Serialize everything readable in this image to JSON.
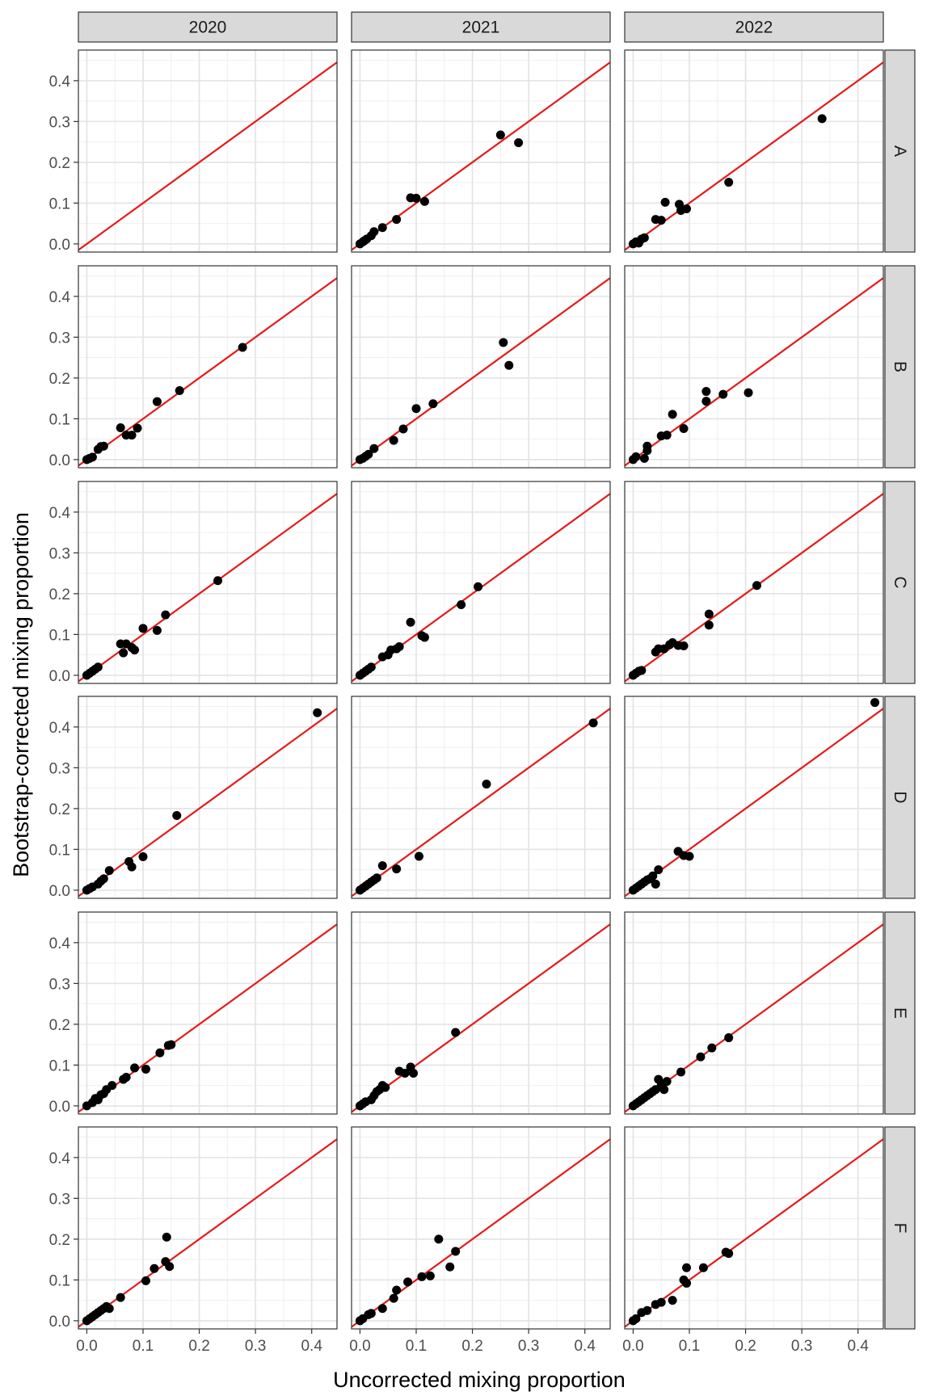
{
  "chart_data": {
    "type": "scatter",
    "layout": "facet_grid",
    "xlabel": "Uncorrected mixing proportion",
    "ylabel": "Bootstrap-corrected mixing proportion",
    "col_facets": [
      "2020",
      "2021",
      "2022"
    ],
    "row_facets": [
      "A",
      "B",
      "C",
      "D",
      "E",
      "F"
    ],
    "xlim": [
      -0.015,
      0.445
    ],
    "ylim": [
      -0.02,
      0.475
    ],
    "x_ticks": [
      0.0,
      0.1,
      0.2,
      0.3,
      0.4
    ],
    "y_ticks": [
      0.0,
      0.1,
      0.2,
      0.3,
      0.4
    ],
    "x_tick_labels": [
      "0.0",
      "0.1",
      "0.2",
      "0.3",
      "0.4"
    ],
    "y_tick_labels": [
      "0.0",
      "0.1",
      "0.2",
      "0.3",
      "0.4"
    ],
    "reference_line": {
      "slope": 1,
      "intercept": 0,
      "color": "#e41a1c"
    },
    "grid": true,
    "point_color": "#000000",
    "panels": [
      {
        "row": "A",
        "col": "2020",
        "points": []
      },
      {
        "row": "A",
        "col": "2021",
        "points": [
          [
            0.0,
            0.0
          ],
          [
            0.005,
            0.005
          ],
          [
            0.008,
            0.008
          ],
          [
            0.012,
            0.012
          ],
          [
            0.02,
            0.02
          ],
          [
            0.025,
            0.03
          ],
          [
            0.04,
            0.04
          ],
          [
            0.065,
            0.06
          ],
          [
            0.09,
            0.113
          ],
          [
            0.1,
            0.112
          ],
          [
            0.115,
            0.104
          ],
          [
            0.25,
            0.267
          ],
          [
            0.282,
            0.248
          ]
        ]
      },
      {
        "row": "A",
        "col": "2022",
        "points": [
          [
            0.0,
            0.0
          ],
          [
            0.005,
            0.005
          ],
          [
            0.01,
            0.002
          ],
          [
            0.015,
            0.012
          ],
          [
            0.02,
            0.015
          ],
          [
            0.04,
            0.06
          ],
          [
            0.05,
            0.058
          ],
          [
            0.057,
            0.102
          ],
          [
            0.082,
            0.097
          ],
          [
            0.085,
            0.082
          ],
          [
            0.095,
            0.086
          ],
          [
            0.17,
            0.151
          ],
          [
            0.336,
            0.307
          ]
        ]
      },
      {
        "row": "B",
        "col": "2020",
        "points": [
          [
            0.0,
            0.0
          ],
          [
            0.005,
            0.003
          ],
          [
            0.01,
            0.006
          ],
          [
            0.02,
            0.025
          ],
          [
            0.025,
            0.032
          ],
          [
            0.03,
            0.033
          ],
          [
            0.06,
            0.078
          ],
          [
            0.07,
            0.06
          ],
          [
            0.08,
            0.06
          ],
          [
            0.09,
            0.077
          ],
          [
            0.125,
            0.142
          ],
          [
            0.165,
            0.169
          ],
          [
            0.277,
            0.275
          ]
        ]
      },
      {
        "row": "B",
        "col": "2021",
        "points": [
          [
            0.0,
            0.0
          ],
          [
            0.005,
            0.003
          ],
          [
            0.01,
            0.008
          ],
          [
            0.015,
            0.013
          ],
          [
            0.025,
            0.027
          ],
          [
            0.06,
            0.047
          ],
          [
            0.077,
            0.075
          ],
          [
            0.1,
            0.125
          ],
          [
            0.13,
            0.137
          ],
          [
            0.255,
            0.287
          ],
          [
            0.265,
            0.231
          ]
        ]
      },
      {
        "row": "B",
        "col": "2022",
        "points": [
          [
            0.0,
            0.0
          ],
          [
            0.005,
            0.007
          ],
          [
            0.02,
            0.003
          ],
          [
            0.025,
            0.022
          ],
          [
            0.025,
            0.033
          ],
          [
            0.05,
            0.058
          ],
          [
            0.06,
            0.06
          ],
          [
            0.07,
            0.111
          ],
          [
            0.09,
            0.076
          ],
          [
            0.13,
            0.143
          ],
          [
            0.13,
            0.167
          ],
          [
            0.16,
            0.16
          ],
          [
            0.205,
            0.164
          ]
        ]
      },
      {
        "row": "C",
        "col": "2020",
        "points": [
          [
            0.0,
            0.0
          ],
          [
            0.005,
            0.005
          ],
          [
            0.01,
            0.01
          ],
          [
            0.015,
            0.015
          ],
          [
            0.02,
            0.02
          ],
          [
            0.06,
            0.077
          ],
          [
            0.065,
            0.055
          ],
          [
            0.07,
            0.077
          ],
          [
            0.08,
            0.068
          ],
          [
            0.085,
            0.062
          ],
          [
            0.1,
            0.115
          ],
          [
            0.125,
            0.11
          ],
          [
            0.14,
            0.148
          ],
          [
            0.233,
            0.232
          ]
        ]
      },
      {
        "row": "C",
        "col": "2021",
        "points": [
          [
            0.0,
            0.0
          ],
          [
            0.005,
            0.005
          ],
          [
            0.01,
            0.01
          ],
          [
            0.015,
            0.015
          ],
          [
            0.02,
            0.02
          ],
          [
            0.04,
            0.045
          ],
          [
            0.05,
            0.05
          ],
          [
            0.055,
            0.062
          ],
          [
            0.065,
            0.065
          ],
          [
            0.07,
            0.07
          ],
          [
            0.09,
            0.13
          ],
          [
            0.11,
            0.097
          ],
          [
            0.115,
            0.093
          ],
          [
            0.18,
            0.173
          ],
          [
            0.21,
            0.217
          ]
        ]
      },
      {
        "row": "C",
        "col": "2022",
        "points": [
          [
            0.0,
            0.0
          ],
          [
            0.005,
            0.005
          ],
          [
            0.01,
            0.01
          ],
          [
            0.015,
            0.012
          ],
          [
            0.04,
            0.057
          ],
          [
            0.045,
            0.065
          ],
          [
            0.055,
            0.065
          ],
          [
            0.065,
            0.075
          ],
          [
            0.07,
            0.08
          ],
          [
            0.08,
            0.073
          ],
          [
            0.09,
            0.072
          ],
          [
            0.135,
            0.15
          ],
          [
            0.135,
            0.123
          ],
          [
            0.22,
            0.22
          ]
        ]
      },
      {
        "row": "D",
        "col": "2020",
        "points": [
          [
            0.0,
            0.0
          ],
          [
            0.005,
            0.004
          ],
          [
            0.01,
            0.008
          ],
          [
            0.02,
            0.015
          ],
          [
            0.025,
            0.022
          ],
          [
            0.03,
            0.028
          ],
          [
            0.04,
            0.048
          ],
          [
            0.075,
            0.07
          ],
          [
            0.08,
            0.057
          ],
          [
            0.1,
            0.082
          ],
          [
            0.16,
            0.183
          ],
          [
            0.41,
            0.435
          ]
        ]
      },
      {
        "row": "D",
        "col": "2021",
        "points": [
          [
            0.0,
            0.0
          ],
          [
            0.005,
            0.005
          ],
          [
            0.01,
            0.01
          ],
          [
            0.015,
            0.015
          ],
          [
            0.02,
            0.02
          ],
          [
            0.025,
            0.025
          ],
          [
            0.03,
            0.03
          ],
          [
            0.04,
            0.06
          ],
          [
            0.065,
            0.052
          ],
          [
            0.105,
            0.083
          ],
          [
            0.225,
            0.26
          ],
          [
            0.415,
            0.41
          ]
        ]
      },
      {
        "row": "D",
        "col": "2022",
        "points": [
          [
            0.0,
            0.0
          ],
          [
            0.005,
            0.005
          ],
          [
            0.01,
            0.01
          ],
          [
            0.015,
            0.015
          ],
          [
            0.02,
            0.02
          ],
          [
            0.025,
            0.025
          ],
          [
            0.03,
            0.028
          ],
          [
            0.035,
            0.035
          ],
          [
            0.04,
            0.015
          ],
          [
            0.045,
            0.05
          ],
          [
            0.08,
            0.095
          ],
          [
            0.09,
            0.085
          ],
          [
            0.1,
            0.083
          ],
          [
            0.43,
            0.46
          ]
        ]
      },
      {
        "row": "E",
        "col": "2020",
        "points": [
          [
            0.0,
            0.0
          ],
          [
            0.01,
            0.008
          ],
          [
            0.015,
            0.018
          ],
          [
            0.02,
            0.015
          ],
          [
            0.025,
            0.027
          ],
          [
            0.03,
            0.03
          ],
          [
            0.035,
            0.04
          ],
          [
            0.045,
            0.05
          ],
          [
            0.065,
            0.065
          ],
          [
            0.07,
            0.07
          ],
          [
            0.085,
            0.093
          ],
          [
            0.105,
            0.09
          ],
          [
            0.13,
            0.13
          ],
          [
            0.145,
            0.148
          ],
          [
            0.15,
            0.15
          ]
        ]
      },
      {
        "row": "E",
        "col": "2021",
        "points": [
          [
            0.0,
            0.0
          ],
          [
            0.005,
            0.005
          ],
          [
            0.01,
            0.01
          ],
          [
            0.02,
            0.015
          ],
          [
            0.025,
            0.025
          ],
          [
            0.03,
            0.035
          ],
          [
            0.035,
            0.04
          ],
          [
            0.04,
            0.05
          ],
          [
            0.045,
            0.045
          ],
          [
            0.07,
            0.085
          ],
          [
            0.08,
            0.08
          ],
          [
            0.09,
            0.095
          ],
          [
            0.095,
            0.08
          ],
          [
            0.17,
            0.18
          ]
        ]
      },
      {
        "row": "E",
        "col": "2022",
        "points": [
          [
            0.0,
            0.0
          ],
          [
            0.005,
            0.005
          ],
          [
            0.01,
            0.01
          ],
          [
            0.015,
            0.015
          ],
          [
            0.02,
            0.02
          ],
          [
            0.025,
            0.025
          ],
          [
            0.03,
            0.03
          ],
          [
            0.035,
            0.035
          ],
          [
            0.04,
            0.04
          ],
          [
            0.045,
            0.065
          ],
          [
            0.05,
            0.05
          ],
          [
            0.055,
            0.04
          ],
          [
            0.06,
            0.06
          ],
          [
            0.085,
            0.083
          ],
          [
            0.12,
            0.12
          ],
          [
            0.14,
            0.142
          ],
          [
            0.17,
            0.167
          ]
        ]
      },
      {
        "row": "F",
        "col": "2020",
        "points": [
          [
            0.0,
            0.0
          ],
          [
            0.005,
            0.005
          ],
          [
            0.01,
            0.01
          ],
          [
            0.015,
            0.015
          ],
          [
            0.02,
            0.02
          ],
          [
            0.025,
            0.025
          ],
          [
            0.03,
            0.03
          ],
          [
            0.035,
            0.035
          ],
          [
            0.04,
            0.03
          ],
          [
            0.06,
            0.057
          ],
          [
            0.105,
            0.098
          ],
          [
            0.12,
            0.128
          ],
          [
            0.14,
            0.145
          ],
          [
            0.142,
            0.205
          ],
          [
            0.147,
            0.133
          ]
        ]
      },
      {
        "row": "F",
        "col": "2021",
        "points": [
          [
            0.0,
            0.0
          ],
          [
            0.005,
            0.005
          ],
          [
            0.015,
            0.015
          ],
          [
            0.02,
            0.018
          ],
          [
            0.04,
            0.03
          ],
          [
            0.06,
            0.055
          ],
          [
            0.065,
            0.075
          ],
          [
            0.085,
            0.095
          ],
          [
            0.11,
            0.108
          ],
          [
            0.125,
            0.11
          ],
          [
            0.14,
            0.2
          ],
          [
            0.16,
            0.132
          ],
          [
            0.17,
            0.17
          ]
        ]
      },
      {
        "row": "F",
        "col": "2022",
        "points": [
          [
            0.0,
            0.0
          ],
          [
            0.005,
            0.005
          ],
          [
            0.015,
            0.02
          ],
          [
            0.025,
            0.025
          ],
          [
            0.04,
            0.04
          ],
          [
            0.05,
            0.045
          ],
          [
            0.07,
            0.05
          ],
          [
            0.09,
            0.1
          ],
          [
            0.095,
            0.13
          ],
          [
            0.095,
            0.092
          ],
          [
            0.125,
            0.13
          ],
          [
            0.165,
            0.168
          ],
          [
            0.17,
            0.165
          ]
        ]
      }
    ]
  }
}
